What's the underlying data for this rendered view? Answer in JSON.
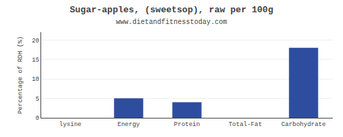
{
  "chart_data": {
    "type": "bar",
    "title": "Sugar-apples, (sweetsop), raw per 100g",
    "subtitle": "www.dietandfitnesstoday.com",
    "categories": [
      "lysine",
      "Energy",
      "Protein",
      "Total-Fat",
      "Carbohydrate"
    ],
    "values": [
      0,
      5,
      4,
      0,
      18
    ],
    "color": "#2e4d9e",
    "ylabel": "Percentage of RDH (%)",
    "ylim": [
      0,
      22
    ],
    "yticks": [
      0,
      5,
      10,
      15,
      20
    ],
    "grid": true
  }
}
